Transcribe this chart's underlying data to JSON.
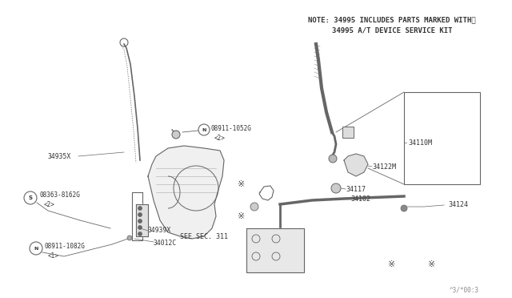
{
  "bg_color": "#ffffff",
  "line_color": "#555555",
  "text_color": "#333333",
  "note_line1": "NOTE: 34995 INCLUDES PARTS MARKED WITH※",
  "note_line2": "34995 A/T DEVICE SERVICE KIT",
  "footer_text": "^3/*00:3",
  "dc": "#666666",
  "tc": "#333333"
}
